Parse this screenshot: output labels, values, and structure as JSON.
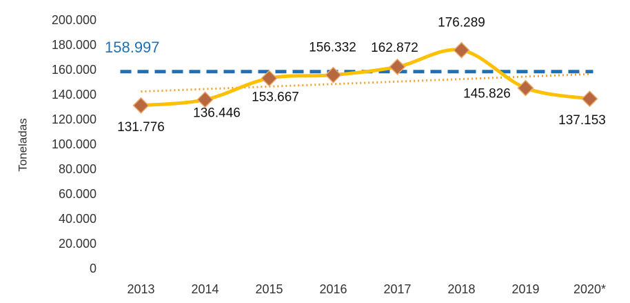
{
  "chart_data": {
    "type": "line",
    "y_axis_label": "Toneladas",
    "categories": [
      "2013",
      "2014",
      "2015",
      "2016",
      "2017",
      "2018",
      "2019",
      "2020*"
    ],
    "series": [
      {
        "color": "#ffc000",
        "marker_color": "#b8683e",
        "values": [
          131776,
          136446,
          153667,
          156332,
          162872,
          176289,
          145826,
          137153
        ],
        "value_labels": [
          "131.776",
          "136.446",
          "153.667",
          "156.332",
          "162.872",
          "176.289",
          "145.826",
          "137.153"
        ]
      }
    ],
    "reference_line": {
      "value": 158997,
      "label": "158.997",
      "color": "#1f6fb4"
    },
    "trendline": {
      "color": "#f0a030",
      "values": [
        143000,
        157000
      ]
    },
    "ylim": [
      0,
      200000
    ],
    "yticks": [
      {
        "value": 0,
        "label": "0"
      },
      {
        "value": 20000,
        "label": "20.000"
      },
      {
        "value": 40000,
        "label": "40.000"
      },
      {
        "value": 60000,
        "label": "60.000"
      },
      {
        "value": 80000,
        "label": "80.000"
      },
      {
        "value": 100000,
        "label": "100.000"
      },
      {
        "value": 120000,
        "label": "120.000"
      },
      {
        "value": 140000,
        "label": "140.000"
      },
      {
        "value": 160000,
        "label": "160.000"
      },
      {
        "value": 180000,
        "label": "180.000"
      },
      {
        "value": 200000,
        "label": "200.000"
      }
    ],
    "grid": false
  }
}
